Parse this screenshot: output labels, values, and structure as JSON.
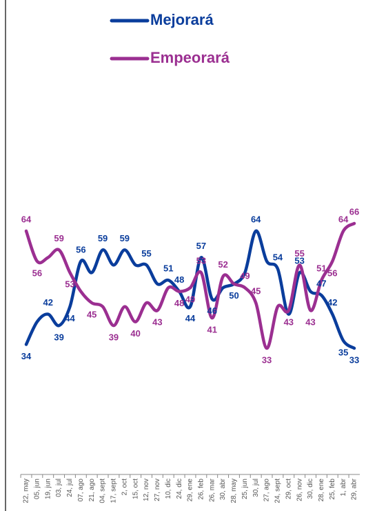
{
  "chart_data": {
    "type": "line",
    "categories": [
      "22, may",
      "05, jun",
      "19, jun",
      "03, jul",
      "24, jul",
      "07, ago",
      "21, ago",
      "04, sept",
      "17, sept",
      "2, oct",
      "15, oct",
      "12, nov",
      "27, nov",
      "10, dic",
      "24, dic",
      "29, ene",
      "26, feb",
      "26, mar",
      "30, abr",
      "28, may",
      "25, jun",
      "30, jul",
      "27, ago",
      "24, sept",
      "29, oct",
      "26, nov",
      "30, dic",
      "28, ene",
      "25, feb",
      "1, abr",
      "29, abr"
    ],
    "series": [
      {
        "name": "Mejorará",
        "color": "#0a3d9c",
        "values": [
          34,
          40,
          42,
          39,
          44,
          56,
          53,
          59,
          55,
          59,
          55,
          55,
          50,
          51,
          48,
          44,
          57,
          46,
          49,
          50,
          53,
          64,
          56,
          54,
          42,
          53,
          48,
          47,
          42,
          35,
          33
        ],
        "value_labels": [
          "34",
          null,
          "42",
          "39",
          "44",
          "56",
          null,
          "59",
          null,
          "59",
          null,
          "55",
          null,
          "51",
          "48",
          "44",
          "57",
          "46",
          null,
          "50",
          null,
          "64",
          null,
          "54",
          null,
          "53",
          null,
          "47",
          "42",
          "35",
          "33"
        ]
      },
      {
        "name": "Empeorará",
        "color": "#9b2f91",
        "values": [
          64,
          56,
          57,
          59,
          53,
          48,
          45,
          44,
          39,
          44,
          40,
          45,
          43,
          49,
          48,
          49,
          53,
          41,
          52,
          50,
          49,
          45,
          33,
          44,
          43,
          55,
          43,
          51,
          56,
          64,
          66
        ],
        "value_labels": [
          "64",
          "56",
          null,
          "59",
          "53",
          null,
          "45",
          null,
          "39",
          null,
          "40",
          null,
          "43",
          null,
          "48",
          "49",
          "53",
          "41",
          "52",
          null,
          "49",
          "45",
          "33",
          null,
          "43",
          "55",
          "43",
          "51",
          "56",
          "64",
          "66"
        ]
      }
    ]
  }
}
